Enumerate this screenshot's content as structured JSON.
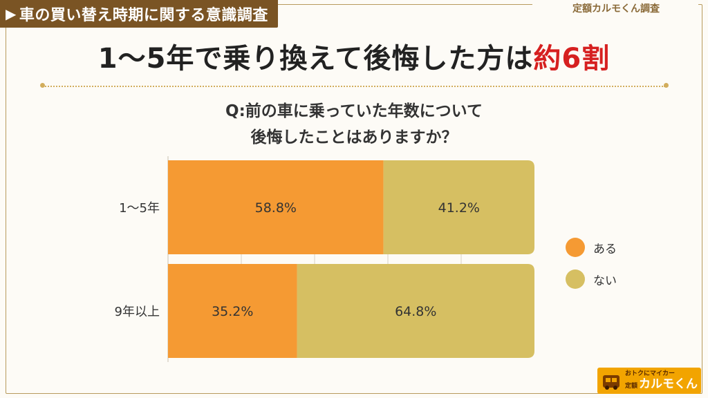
{
  "header": {
    "tab_title": "車の買い替え時期に関する意識調査",
    "source": "定額カルモくん調査"
  },
  "headline": {
    "main": "1～5年で乗り換えて後悔した方は",
    "accent": "約6割"
  },
  "question": {
    "line1": "Q:前の車に乗っていた年数について",
    "line2": "後悔したことはありますか？"
  },
  "colors": {
    "aru": "#f59a33",
    "nai": "#d6bf62",
    "accent_red": "#d62020",
    "brand_brown": "#7a5424"
  },
  "legend": [
    {
      "label": "ある",
      "color": "#f59a33"
    },
    {
      "label": "ない",
      "color": "#d6bf62"
    }
  ],
  "chart_data": {
    "type": "bar",
    "orientation": "horizontal",
    "stacked": true,
    "percent": true,
    "categories": [
      "1～5年",
      "9年以上"
    ],
    "series": [
      {
        "name": "ある",
        "values": [
          58.8,
          35.2
        ],
        "labels": [
          "58.8%",
          "35.2%"
        ]
      },
      {
        "name": "ない",
        "values": [
          41.2,
          64.8
        ],
        "labels": [
          "41.2%",
          "64.8%"
        ]
      }
    ],
    "xlim": [
      0,
      100
    ],
    "legend_position": "right"
  },
  "logo": {
    "tagline": "おトクにマイカー",
    "prefix": "定額",
    "name": "カルモくん"
  }
}
